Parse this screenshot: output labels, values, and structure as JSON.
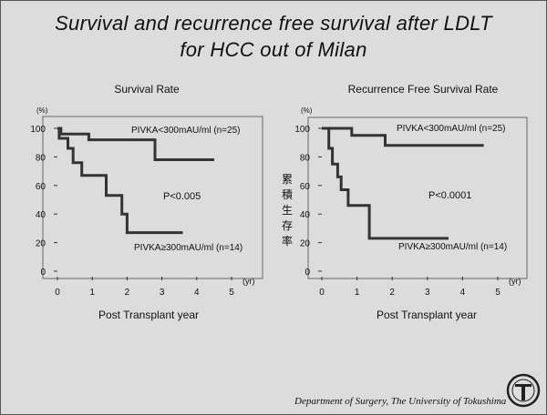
{
  "slide": {
    "title_line1": "Survival and recurrence free survival after LDLT",
    "title_line2": "for HCC out of Milan",
    "footer": "Department of  Surgery, The University of Tokushima"
  },
  "chart_data": [
    {
      "type": "line",
      "step": true,
      "title": "Survival Rate",
      "xlabel": "Post Transplant year",
      "x_unit": "(yr)",
      "ylabel": "",
      "y_unit": "(%)",
      "xlim": [
        0,
        5
      ],
      "ylim": [
        0,
        100
      ],
      "xticks": [
        0,
        1,
        2,
        3,
        4,
        5
      ],
      "yticks": [
        0,
        20,
        40,
        60,
        80,
        100
      ],
      "grid": false,
      "annotations": [
        {
          "text": "P<0.005"
        }
      ],
      "series": [
        {
          "name": "PIVKA<300mAU/ml (n=25)",
          "points": [
            [
              0,
              100
            ],
            [
              0.1,
              100
            ],
            [
              0.1,
              96
            ],
            [
              0.9,
              96
            ],
            [
              0.9,
              92
            ],
            [
              2.8,
              92
            ],
            [
              2.8,
              78
            ],
            [
              4.5,
              78
            ]
          ]
        },
        {
          "name": "PIVKA≥300mAU/ml (n=14)",
          "points": [
            [
              0,
              100
            ],
            [
              0.05,
              100
            ],
            [
              0.05,
              93
            ],
            [
              0.3,
              93
            ],
            [
              0.3,
              86
            ],
            [
              0.45,
              86
            ],
            [
              0.45,
              76
            ],
            [
              0.7,
              76
            ],
            [
              0.7,
              67
            ],
            [
              1.4,
              67
            ],
            [
              1.4,
              53
            ],
            [
              1.85,
              53
            ],
            [
              1.85,
              40
            ],
            [
              2.0,
              40
            ],
            [
              2.0,
              27
            ],
            [
              3.6,
              27
            ]
          ]
        }
      ]
    },
    {
      "type": "line",
      "step": true,
      "title": "Recurrence Free Survival Rate",
      "xlabel": "Post Transplant year",
      "x_unit": "(yr)",
      "ylabel": "累積生存率",
      "y_unit": "(%)",
      "xlim": [
        0,
        5
      ],
      "ylim": [
        0,
        100
      ],
      "xticks": [
        0,
        1,
        2,
        3,
        4,
        5
      ],
      "yticks": [
        0,
        20,
        40,
        60,
        80,
        100
      ],
      "grid": false,
      "annotations": [
        {
          "text": "P<0.0001"
        }
      ],
      "series": [
        {
          "name": "PIVKA<300mAU/ml (n=25)",
          "points": [
            [
              0,
              100
            ],
            [
              0.85,
              100
            ],
            [
              0.85,
              95
            ],
            [
              1.8,
              95
            ],
            [
              1.8,
              88
            ],
            [
              4.6,
              88
            ]
          ]
        },
        {
          "name": "PIVKA≥300mAU/ml (n=14)",
          "points": [
            [
              0,
              100
            ],
            [
              0.2,
              100
            ],
            [
              0.2,
              86
            ],
            [
              0.3,
              86
            ],
            [
              0.3,
              75
            ],
            [
              0.45,
              75
            ],
            [
              0.45,
              66
            ],
            [
              0.55,
              66
            ],
            [
              0.55,
              57
            ],
            [
              0.75,
              57
            ],
            [
              0.75,
              46
            ],
            [
              1.35,
              46
            ],
            [
              1.35,
              23
            ],
            [
              3.6,
              23
            ]
          ]
        }
      ]
    }
  ]
}
